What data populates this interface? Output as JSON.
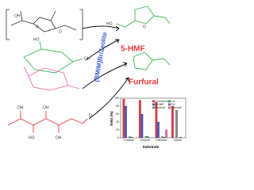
{
  "labels": {
    "catalyst": "[BMIM]Br/Zeolite",
    "hmf": "5-HMF",
    "furfural": "Furfural",
    "atoms": [
      "OH",
      "O",
      "O",
      "HO",
      "O",
      "HO",
      "OH",
      "OH",
      "O",
      "HO",
      "OH",
      "OH"
    ]
  },
  "chart_data": {
    "type": "bar",
    "x_label": "Substrate",
    "y_label": "Yield (%)",
    "categories": [
      "Fructose",
      "Glucose",
      "Cellulose",
      "Xylose"
    ],
    "series": [
      {
        "name": "Conversion",
        "color": "#e8383d",
        "values": [
          98,
          95,
          90,
          80
        ]
      },
      {
        "name": "5-HMF",
        "color": "#3b5bd6",
        "values": [
          80,
          60,
          40,
          null
        ]
      },
      {
        "name": "Furfural",
        "color": "#8c8c8c",
        "values": [
          null,
          null,
          null,
          70
        ]
      },
      {
        "name": "LA",
        "color": "#3cb44b",
        "values": [
          3,
          4,
          3,
          null
        ]
      },
      {
        "name": "FA",
        "color": "#9b59b6",
        "values": [
          2,
          3,
          2,
          2
        ]
      },
      {
        "name": "Glucose",
        "color": "#f06eaa",
        "values": [
          null,
          null,
          20,
          null
        ]
      }
    ],
    "ylim": [
      0,
      100
    ],
    "yticks": [
      0,
      20,
      40,
      60,
      80,
      100
    ]
  }
}
